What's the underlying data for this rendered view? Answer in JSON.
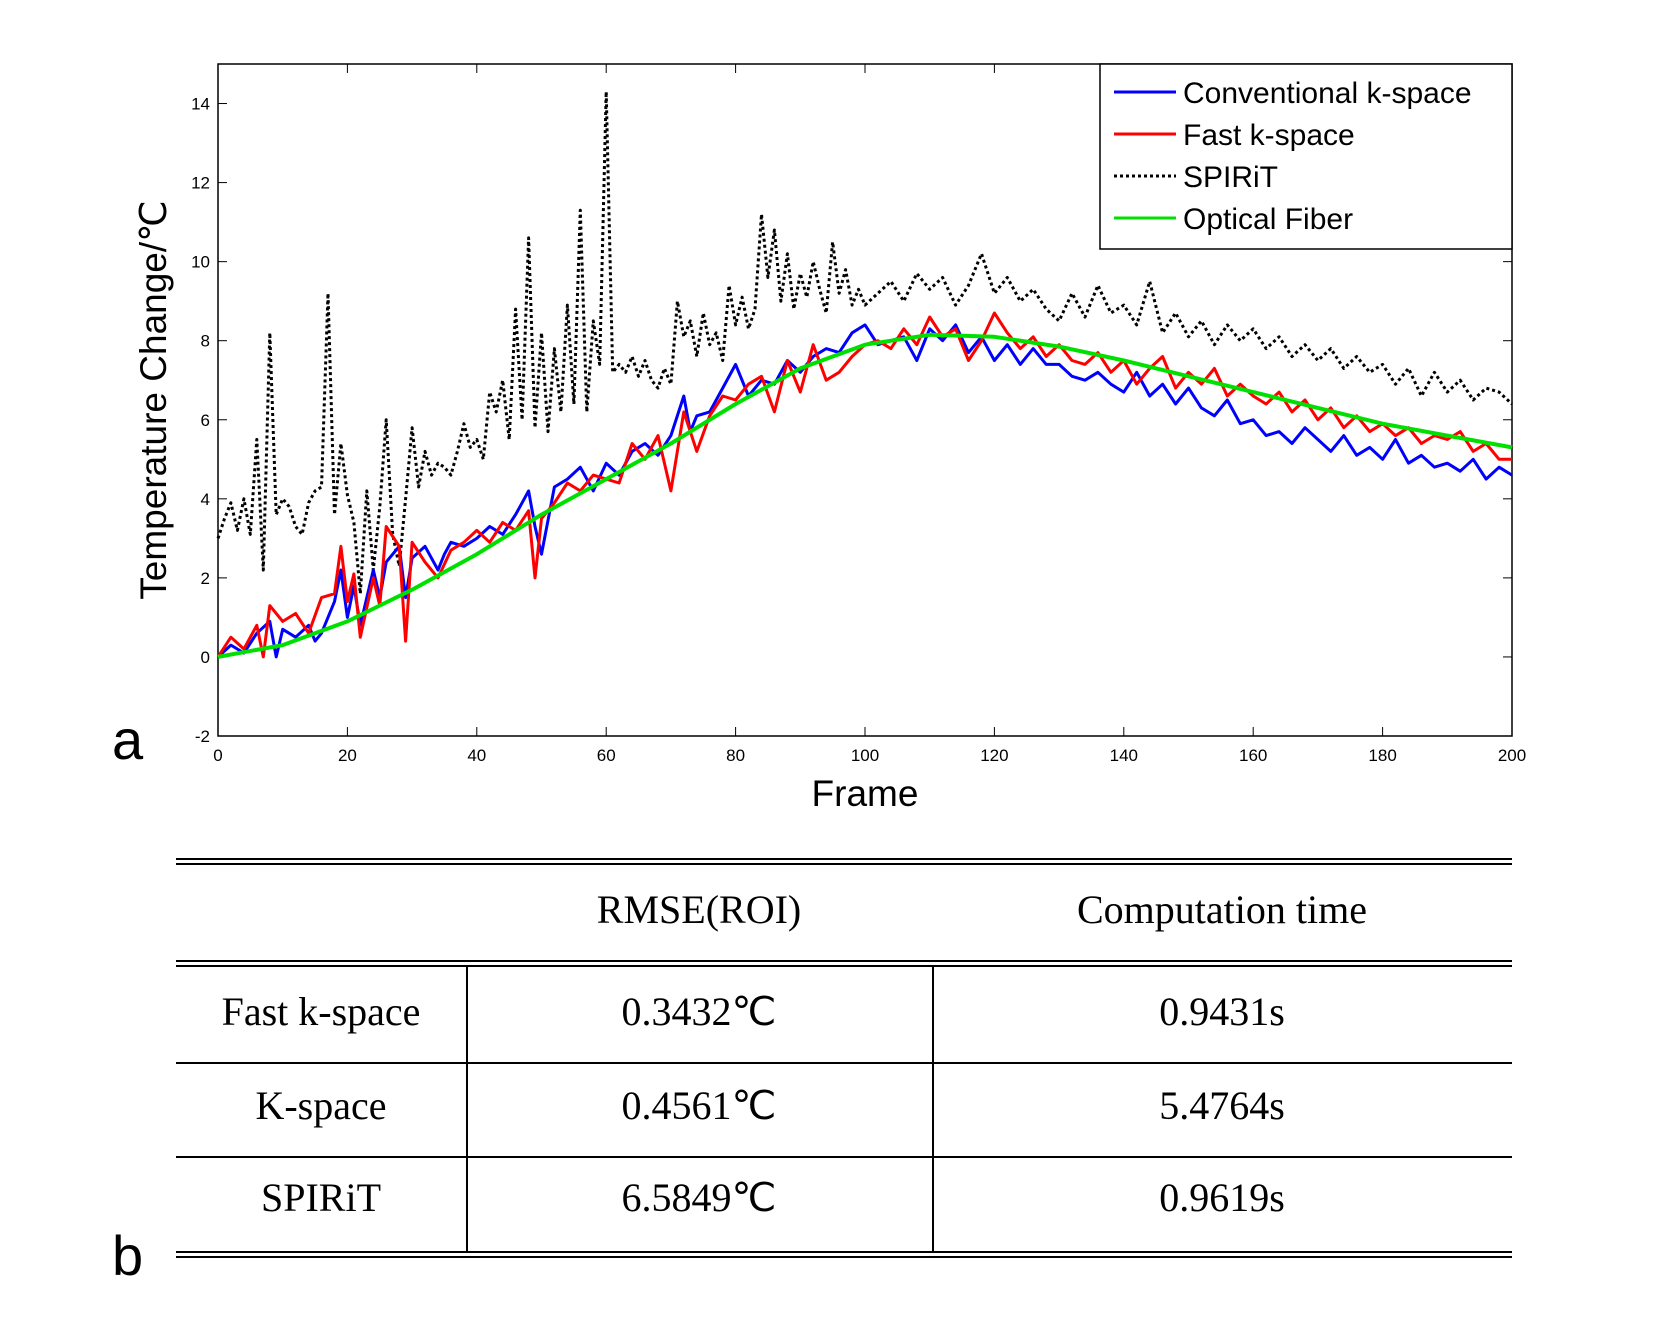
{
  "panels": {
    "a": "a",
    "b": "b"
  },
  "chart_data": {
    "type": "line",
    "title": "",
    "xlabel": "Frame",
    "ylabel": "Temperature Change/℃",
    "xlim": [
      0,
      200
    ],
    "ylim": [
      -2,
      15
    ],
    "xticks": [
      0,
      20,
      40,
      60,
      80,
      100,
      120,
      140,
      160,
      180,
      200
    ],
    "yticks": [
      -2,
      0,
      2,
      4,
      6,
      8,
      10,
      12,
      14
    ],
    "grid": false,
    "legend_position": "top-right",
    "series": [
      {
        "name": "Conventional k-space",
        "color": "#0000ff",
        "style": "solid",
        "x": [
          0,
          2,
          4,
          6,
          8,
          9,
          10,
          12,
          14,
          15,
          16,
          18,
          19,
          20,
          21,
          22,
          24,
          25,
          26,
          28,
          29,
          30,
          32,
          34,
          35,
          36,
          38,
          40,
          42,
          44,
          46,
          47,
          48,
          49,
          50,
          52,
          54,
          56,
          58,
          60,
          62,
          64,
          66,
          68,
          70,
          72,
          73,
          74,
          76,
          78,
          80,
          82,
          84,
          86,
          88,
          90,
          92,
          94,
          96,
          98,
          100,
          102,
          104,
          106,
          108,
          110,
          112,
          114,
          116,
          118,
          120,
          122,
          124,
          126,
          128,
          130,
          132,
          134,
          136,
          138,
          140,
          142,
          144,
          146,
          148,
          150,
          152,
          154,
          156,
          158,
          160,
          162,
          164,
          166,
          168,
          170,
          172,
          174,
          176,
          178,
          180,
          182,
          184,
          186,
          188,
          190,
          192,
          194,
          196,
          198,
          200
        ],
        "values": [
          0,
          0.3,
          0.1,
          0.6,
          0.9,
          0,
          0.7,
          0.5,
          0.8,
          0.4,
          0.6,
          1.4,
          2.2,
          1.0,
          1.8,
          0.8,
          2.2,
          1.5,
          2.4,
          2.8,
          1.5,
          2.5,
          2.8,
          2.2,
          2.6,
          2.9,
          2.8,
          3.0,
          3.3,
          3.1,
          3.6,
          3.9,
          4.2,
          3.3,
          2.6,
          4.3,
          4.5,
          4.8,
          4.2,
          4.9,
          4.6,
          5.2,
          5.4,
          5.1,
          5.6,
          6.6,
          5.7,
          6.1,
          6.2,
          6.8,
          7.4,
          6.6,
          7.0,
          6.9,
          7.5,
          7.2,
          7.6,
          7.8,
          7.7,
          8.2,
          8.4,
          7.9,
          8.0,
          8.1,
          7.5,
          8.3,
          8.0,
          8.4,
          7.7,
          8.1,
          7.5,
          7.9,
          7.4,
          7.8,
          7.4,
          7.4,
          7.1,
          7.0,
          7.2,
          6.9,
          6.7,
          7.2,
          6.6,
          6.9,
          6.4,
          6.8,
          6.3,
          6.1,
          6.5,
          5.9,
          6.0,
          5.6,
          5.7,
          5.4,
          5.8,
          5.5,
          5.2,
          5.6,
          5.1,
          5.3,
          5.0,
          5.5,
          4.9,
          5.1,
          4.8,
          4.9,
          4.7,
          5.0,
          4.5,
          4.8,
          4.6
        ]
      },
      {
        "name": "Fast k-space",
        "color": "#ff0000",
        "style": "solid",
        "x": [
          0,
          2,
          4,
          6,
          7,
          8,
          10,
          12,
          14,
          16,
          18,
          19,
          20,
          21,
          22,
          24,
          25,
          26,
          28,
          29,
          30,
          32,
          34,
          36,
          38,
          40,
          42,
          44,
          46,
          48,
          49,
          50,
          52,
          54,
          56,
          58,
          60,
          62,
          64,
          66,
          68,
          70,
          72,
          74,
          76,
          78,
          80,
          82,
          84,
          86,
          88,
          90,
          92,
          94,
          96,
          98,
          100,
          102,
          104,
          106,
          108,
          110,
          112,
          114,
          116,
          118,
          120,
          122,
          124,
          126,
          128,
          130,
          132,
          134,
          136,
          138,
          140,
          142,
          144,
          146,
          148,
          150,
          152,
          154,
          156,
          158,
          160,
          162,
          164,
          166,
          168,
          170,
          172,
          174,
          176,
          178,
          180,
          182,
          184,
          186,
          188,
          190,
          192,
          194,
          196,
          198,
          200
        ],
        "values": [
          0,
          0.5,
          0.2,
          0.8,
          0,
          1.3,
          0.9,
          1.1,
          0.6,
          1.5,
          1.6,
          2.8,
          1.4,
          2.1,
          0.5,
          2.0,
          1.3,
          3.3,
          2.8,
          0.4,
          2.9,
          2.4,
          2.0,
          2.7,
          2.9,
          3.2,
          2.9,
          3.4,
          3.2,
          3.7,
          2.0,
          3.5,
          3.9,
          4.4,
          4.2,
          4.6,
          4.5,
          4.4,
          5.4,
          5.0,
          5.6,
          4.2,
          6.2,
          5.2,
          6.1,
          6.6,
          6.5,
          6.9,
          7.1,
          6.2,
          7.5,
          6.7,
          7.9,
          7.0,
          7.2,
          7.6,
          7.9,
          8.0,
          7.8,
          8.3,
          7.9,
          8.6,
          8.1,
          8.3,
          7.5,
          8.0,
          8.7,
          8.2,
          7.8,
          8.1,
          7.6,
          7.9,
          7.5,
          7.4,
          7.7,
          7.2,
          7.5,
          6.9,
          7.3,
          7.6,
          6.8,
          7.2,
          6.9,
          7.3,
          6.6,
          6.9,
          6.6,
          6.4,
          6.7,
          6.2,
          6.5,
          6.0,
          6.3,
          5.8,
          6.1,
          5.7,
          5.9,
          5.6,
          5.8,
          5.4,
          5.6,
          5.5,
          5.7,
          5.2,
          5.4,
          5.0,
          5.0
        ]
      },
      {
        "name": "SPIRiT",
        "color": "#000000",
        "style": "dotted",
        "x": [
          0,
          1,
          2,
          3,
          4,
          5,
          6,
          7,
          8,
          9,
          10,
          11,
          12,
          13,
          14,
          15,
          16,
          17,
          18,
          19,
          20,
          21,
          22,
          23,
          24,
          25,
          26,
          27,
          28,
          29,
          30,
          31,
          32,
          33,
          34,
          35,
          36,
          37,
          38,
          39,
          40,
          41,
          42,
          43,
          44,
          45,
          46,
          47,
          48,
          49,
          50,
          51,
          52,
          53,
          54,
          55,
          56,
          57,
          58,
          59,
          60,
          61,
          62,
          63,
          64,
          65,
          66,
          67,
          68,
          69,
          70,
          71,
          72,
          73,
          74,
          75,
          76,
          77,
          78,
          79,
          80,
          81,
          82,
          83,
          84,
          85,
          86,
          87,
          88,
          89,
          90,
          91,
          92,
          93,
          94,
          95,
          96,
          97,
          98,
          99,
          100,
          102,
          104,
          106,
          108,
          110,
          112,
          114,
          116,
          118,
          120,
          122,
          124,
          126,
          128,
          130,
          132,
          134,
          136,
          138,
          140,
          142,
          144,
          146,
          148,
          150,
          152,
          154,
          156,
          158,
          160,
          162,
          164,
          166,
          168,
          170,
          172,
          174,
          176,
          178,
          180,
          182,
          184,
          186,
          188,
          190,
          192,
          194,
          196,
          198,
          200
        ],
        "values": [
          3.0,
          3.5,
          3.9,
          3.2,
          4.0,
          3.1,
          5.5,
          2.2,
          8.2,
          3.6,
          4.0,
          3.8,
          3.3,
          3.1,
          3.9,
          4.2,
          4.3,
          9.2,
          3.6,
          5.4,
          4.1,
          3.4,
          1.6,
          4.2,
          2.2,
          3.8,
          6.0,
          3.1,
          2.3,
          4.0,
          5.8,
          4.3,
          5.2,
          4.6,
          4.9,
          4.8,
          4.6,
          5.2,
          5.9,
          5.3,
          5.5,
          5.0,
          6.7,
          6.2,
          7.0,
          5.5,
          8.8,
          6.0,
          10.6,
          5.8,
          8.2,
          5.7,
          7.8,
          6.2,
          8.9,
          6.4,
          11.3,
          6.2,
          8.5,
          7.4,
          14.3,
          7.2,
          7.4,
          7.2,
          7.6,
          7.1,
          7.5,
          7.0,
          6.8,
          7.3,
          6.9,
          9.0,
          8.1,
          8.5,
          7.6,
          8.7,
          7.9,
          8.2,
          7.5,
          9.4,
          8.4,
          9.1,
          8.3,
          8.8,
          11.2,
          9.6,
          10.8,
          9.0,
          10.2,
          8.8,
          9.7,
          9.1,
          10.0,
          9.3,
          8.7,
          10.5,
          9.2,
          9.8,
          8.9,
          9.3,
          8.9,
          9.2,
          9.5,
          9.0,
          9.7,
          9.3,
          9.6,
          8.9,
          9.4,
          10.2,
          9.2,
          9.6,
          9.0,
          9.3,
          8.8,
          8.5,
          9.2,
          8.6,
          9.4,
          8.7,
          8.9,
          8.4,
          9.5,
          8.2,
          8.7,
          8.1,
          8.5,
          7.9,
          8.4,
          8.0,
          8.3,
          7.8,
          8.1,
          7.6,
          7.9,
          7.5,
          7.8,
          7.3,
          7.6,
          7.2,
          7.4,
          6.9,
          7.3,
          6.6,
          7.2,
          6.7,
          7.0,
          6.5,
          6.8,
          6.7,
          6.4
        ]
      },
      {
        "name": "Optical Fiber",
        "color": "#00e000",
        "style": "solid",
        "x": [
          0,
          10,
          20,
          30,
          40,
          50,
          60,
          70,
          80,
          90,
          100,
          110,
          120,
          130,
          140,
          150,
          160,
          170,
          180,
          190,
          200
        ],
        "values": [
          0,
          0.3,
          0.9,
          1.7,
          2.6,
          3.6,
          4.5,
          5.4,
          6.4,
          7.3,
          7.9,
          8.15,
          8.1,
          7.85,
          7.5,
          7.1,
          6.7,
          6.3,
          5.9,
          5.6,
          5.3
        ]
      }
    ]
  },
  "table": {
    "headers": [
      "",
      "RMSE(ROI)",
      "Computation time"
    ],
    "rows": [
      [
        "Fast k-space",
        "0.3432℃",
        "0.9431s"
      ],
      [
        "K-space",
        "0.4561℃",
        "5.4764s"
      ],
      [
        "SPIRiT",
        "6.5849℃",
        "0.9619s"
      ]
    ]
  }
}
